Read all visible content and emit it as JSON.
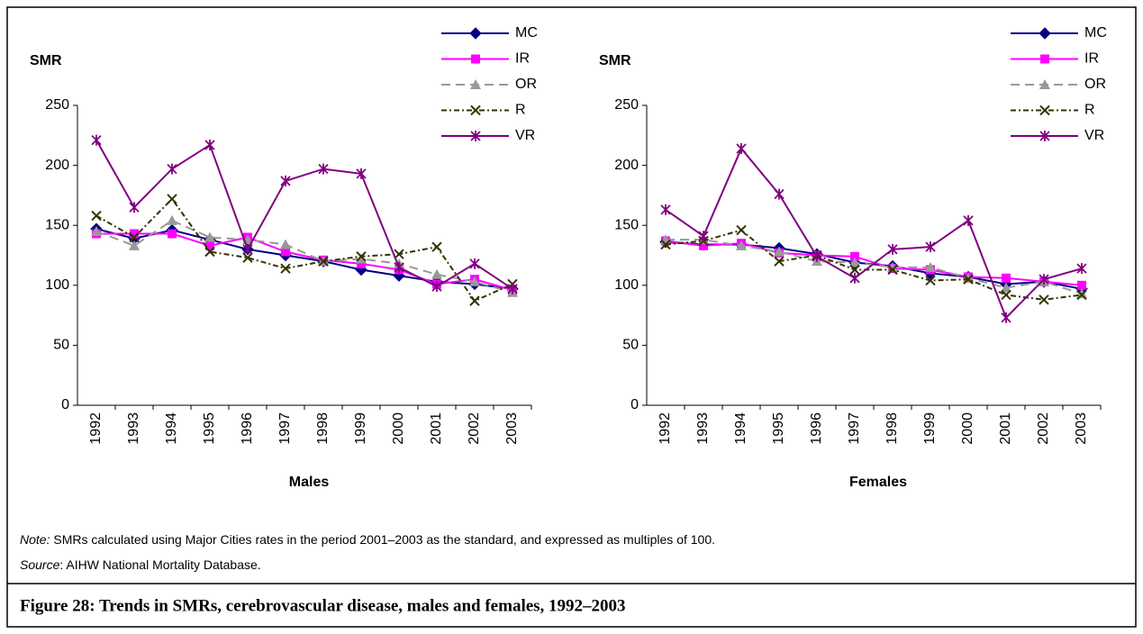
{
  "chart_data": [
    {
      "type": "line",
      "y_label": "SMR",
      "x_label": "Males",
      "categories": [
        "1992",
        "1993",
        "1994",
        "1995",
        "1996",
        "1997",
        "1998",
        "1999",
        "2000",
        "2001",
        "2002",
        "2003"
      ],
      "ylim": [
        0,
        250
      ],
      "yticks": [
        0,
        50,
        100,
        150,
        200,
        250
      ],
      "legend": "top-right",
      "series": [
        {
          "name": "MC",
          "color": "#000080",
          "marker": "diamond",
          "dash": "none",
          "values": [
            147,
            139,
            146,
            138,
            130,
            125,
            120,
            113,
            108,
            103,
            101,
            97
          ]
        },
        {
          "name": "IR",
          "color": "#ff00ff",
          "marker": "square",
          "dash": "none",
          "values": [
            143,
            143,
            143,
            133,
            140,
            128,
            121,
            118,
            113,
            101,
            105,
            96
          ]
        },
        {
          "name": "OR",
          "color": "#999999",
          "marker": "triangle",
          "dash": "10,6",
          "values": [
            145,
            133,
            154,
            140,
            138,
            134,
            120,
            122,
            118,
            109,
            103,
            94
          ]
        },
        {
          "name": "R",
          "color": "#333300",
          "marker": "x",
          "dash": "6,3,2,3",
          "values": [
            158,
            140,
            172,
            128,
            123,
            114,
            120,
            124,
            126,
            132,
            87,
            101
          ]
        },
        {
          "name": "VR",
          "color": "#800080",
          "marker": "star",
          "dash": "none",
          "values": [
            221,
            165,
            197,
            217,
            130,
            187,
            197,
            193,
            115,
            99,
            118,
            97
          ]
        }
      ]
    },
    {
      "type": "line",
      "y_label": "SMR",
      "x_label": "Females",
      "categories": [
        "1992",
        "1993",
        "1994",
        "1995",
        "1996",
        "1997",
        "1998",
        "1999",
        "2000",
        "2001",
        "2002",
        "2003"
      ],
      "ylim": [
        0,
        250
      ],
      "yticks": [
        0,
        50,
        100,
        150,
        200,
        250
      ],
      "legend": "top-right",
      "series": [
        {
          "name": "MC",
          "color": "#000080",
          "marker": "diamond",
          "dash": "none",
          "values": [
            136,
            134,
            134,
            131,
            126,
            119,
            116,
            110,
            107,
            101,
            103,
            97
          ]
        },
        {
          "name": "IR",
          "color": "#ff00ff",
          "marker": "square",
          "dash": "none",
          "values": [
            137,
            133,
            135,
            127,
            125,
            124,
            114,
            113,
            107,
            106,
            103,
            100
          ]
        },
        {
          "name": "OR",
          "color": "#999999",
          "marker": "triangle",
          "dash": "10,6",
          "values": [
            138,
            138,
            133,
            128,
            120,
            119,
            115,
            115,
            106,
            98,
            103,
            93
          ]
        },
        {
          "name": "R",
          "color": "#333300",
          "marker": "x",
          "dash": "6,3,2,3",
          "values": [
            134,
            137,
            146,
            120,
            125,
            113,
            113,
            104,
            105,
            92,
            88,
            92
          ]
        },
        {
          "name": "VR",
          "color": "#800080",
          "marker": "star",
          "dash": "none",
          "values": [
            163,
            141,
            214,
            176,
            124,
            106,
            130,
            132,
            154,
            73,
            105,
            114
          ]
        }
      ]
    }
  ],
  "note_label": "Note:",
  "note": " SMRs calculated using Major Cities rates in the period 2001–2003 as the standard, and expressed as multiples of 100.",
  "source_label": "Source",
  "source": ": AIHW National Mortality Database.",
  "caption": "Figure 28: Trends in SMRs, cerebrovascular disease, males and females, 1992–2003"
}
